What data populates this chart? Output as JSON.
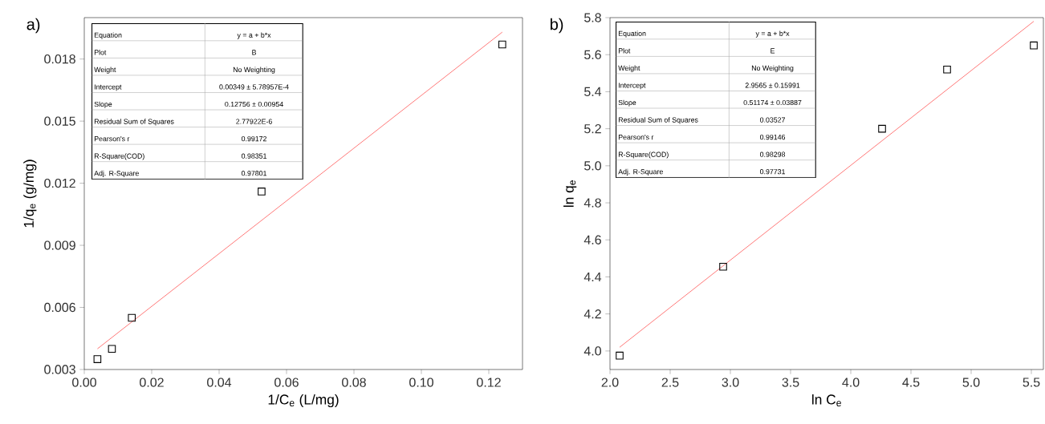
{
  "chart_data": [
    {
      "type": "scatter",
      "xlabel": "1/C$_{e}$ (L/mg)",
      "ylabel": "1/q$_{e}$ (g/mg)",
      "xlim": [
        0,
        0.13
      ],
      "ylim": [
        0.003,
        0.02
      ],
      "xticks": [
        {
          "value": 0,
          "label": "0.00"
        },
        0.02,
        0.04,
        0.06,
        0.08,
        {
          "value": 0.1,
          "label": "0.10"
        },
        0.12
      ],
      "yticks": [
        0.003,
        0.006,
        0.009,
        0.012,
        0.015,
        0.018
      ],
      "series": [
        {
          "type": "scatter",
          "color": "#000000",
          "marker": "square",
          "x": [
            0.0039,
            0.0082,
            0.0141,
            0.0526,
            0.124
          ],
          "values": [
            0.0035,
            0.004,
            0.0055,
            0.0116,
            0.0187
          ]
        },
        {
          "type": "line",
          "color": "#ff0000",
          "marker": "none",
          "x": [
            0.0039,
            0.124
          ],
          "values": [
            0.004,
            0.0193
          ]
        }
      ],
      "annotations": [
        "a)",
        "Equation",
        "y = a + b*x",
        "Plot",
        "B",
        "Weight",
        "No Weighting",
        "Intercept",
        "0.00349 ± 5.78957E-4",
        "Slope",
        "0.12756 ± 0.00954",
        "Residual Sum of Squares",
        "2.77922E-6",
        "Pearson's r",
        "0.99172",
        "R-Square(COD)",
        "0.98351",
        "Adj. R-Square",
        "0.97801"
      ]
    },
    {
      "type": "scatter",
      "xlabel": "ln C$_{e}$",
      "ylabel": "ln q$_{e}$",
      "xlim": [
        2.0,
        5.6
      ],
      "ylim": [
        3.9,
        5.8
      ],
      "xticks": [
        {
          "value": 2.0,
          "label": "2.0"
        },
        2.5,
        {
          "value": 3.0,
          "label": "3.0"
        },
        3.5,
        {
          "value": 4.0,
          "label": "4.0"
        },
        4.5,
        {
          "value": 5.0,
          "label": "5.0"
        },
        5.5
      ],
      "yticks": [
        {
          "value": 4.0,
          "label": "4.0"
        },
        4.2,
        4.4,
        4.6,
        4.8,
        {
          "value": 5.0,
          "label": "5.0"
        },
        5.2,
        5.4,
        5.6,
        5.8
      ],
      "series": [
        {
          "type": "scatter",
          "color": "#000000",
          "marker": "square",
          "x": [
            2.08,
            2.94,
            4.26,
            4.8,
            5.52
          ],
          "values": [
            3.975,
            4.455,
            5.2,
            5.52,
            5.65
          ]
        },
        {
          "type": "line",
          "color": "#ff0000",
          "marker": "none",
          "x": [
            2.08,
            5.52
          ],
          "values": [
            4.02,
            5.78
          ]
        }
      ],
      "annotations": [
        "b)",
        "Equation",
        "y = a + b*x",
        "Plot",
        "E",
        "Weight",
        "No Weighting",
        "Intercept",
        "2.9565 ± 0.15991",
        "Slope",
        "0.51174 ± 0.03887",
        "Residual Sum of Squares",
        "0.03527",
        "Pearson's r",
        "0.99146",
        "R-Square(COD)",
        "0.98298",
        "Adj. R-Square",
        "0.97731"
      ]
    }
  ]
}
